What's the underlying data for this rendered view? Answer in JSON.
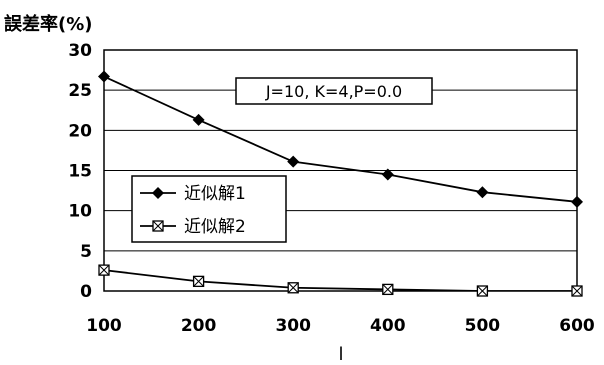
{
  "chart_data": {
    "type": "line",
    "title": "",
    "ylabel": "誤差率(%)",
    "xlabel": "l",
    "categories": [
      100,
      200,
      300,
      400,
      500,
      600
    ],
    "ylim": [
      0,
      30
    ],
    "yticks": [
      0,
      5,
      10,
      15,
      20,
      25,
      30
    ],
    "grid": "horizontal",
    "legend_position": "left",
    "annotation": "J=10, K=4,P=0.0",
    "series": [
      {
        "name": "近似解1",
        "marker": "filled-diamond",
        "values": [
          26.7,
          21.3,
          16.1,
          14.5,
          12.3,
          11.1
        ]
      },
      {
        "name": "近似解2",
        "marker": "hatched-square",
        "values": [
          2.6,
          1.2,
          0.4,
          0.2,
          0.0,
          0.0
        ]
      }
    ]
  }
}
